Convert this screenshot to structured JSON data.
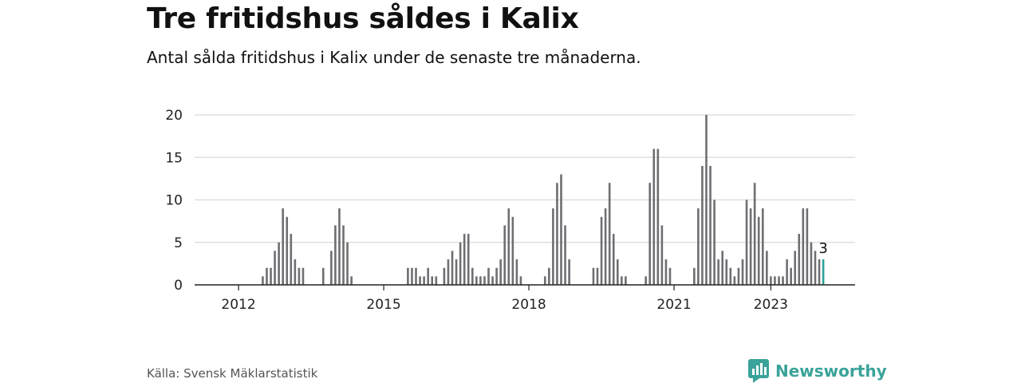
{
  "title": "Tre fritidshus såldes i Kalix",
  "subtitle": "Antal sålda fritidshus i Kalix under de senaste tre månaderna.",
  "source": "Källa: Svensk Mäklarstatistik",
  "brand": {
    "name": "Newsworthy",
    "color": "#3aa39a"
  },
  "colors": {
    "bar": "#6e6e73",
    "highlight": "#2aa198",
    "grid": "#d9d9d9"
  },
  "chart_data": {
    "type": "bar",
    "start": "2011-10",
    "frequency": "monthly",
    "values": [
      0,
      0,
      0,
      0,
      0,
      0,
      0,
      0,
      0,
      1,
      2,
      2,
      4,
      5,
      9,
      8,
      6,
      3,
      2,
      2,
      0,
      0,
      0,
      0,
      2,
      0,
      4,
      7,
      9,
      7,
      5,
      1,
      0,
      0,
      0,
      0,
      0,
      0,
      0,
      0,
      0,
      0,
      0,
      0,
      0,
      2,
      2,
      2,
      1,
      1,
      2,
      1,
      1,
      0,
      2,
      3,
      4,
      3,
      5,
      6,
      6,
      2,
      1,
      1,
      1,
      2,
      1,
      2,
      3,
      7,
      9,
      8,
      3,
      1,
      0,
      0,
      0,
      0,
      0,
      1,
      2,
      9,
      12,
      13,
      7,
      3,
      0,
      0,
      0,
      0,
      0,
      2,
      2,
      8,
      9,
      12,
      6,
      3,
      1,
      1,
      0,
      0,
      0,
      0,
      1,
      12,
      16,
      16,
      7,
      3,
      2,
      0,
      0,
      0,
      0,
      0,
      2,
      9,
      14,
      20,
      14,
      10,
      3,
      4,
      3,
      2,
      1,
      2,
      3,
      10,
      9,
      12,
      8,
      9,
      4,
      1,
      1,
      1,
      1,
      3,
      2,
      4,
      6,
      9,
      9,
      5,
      4,
      3,
      3
    ],
    "highlight_last": true,
    "last_label": "3",
    "x_ticks": [
      "2012",
      "2015",
      "2018",
      "2021",
      "2023"
    ],
    "y_ticks": [
      0,
      5,
      10,
      15,
      20
    ],
    "ylim": [
      0,
      20
    ],
    "grid": true
  }
}
